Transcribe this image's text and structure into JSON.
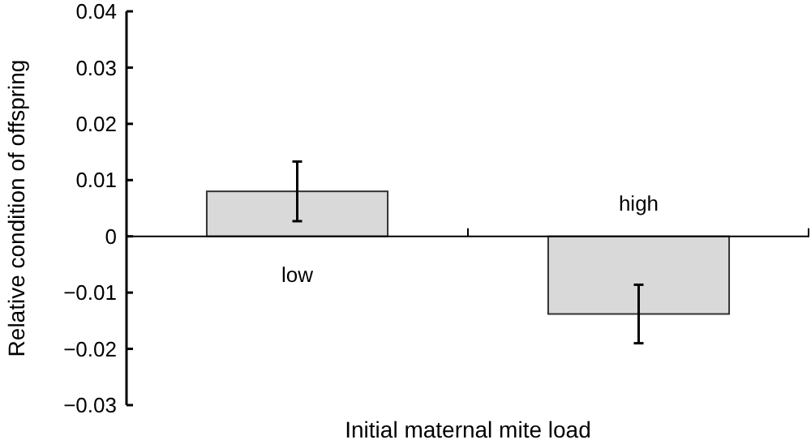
{
  "chart_data": {
    "type": "bar",
    "xlabel": "Initial maternal mite load",
    "ylabel": "Relative condition of offspring",
    "categories": [
      "low",
      "high"
    ],
    "values": [
      0.008,
      -0.0138
    ],
    "errors": [
      0.0053,
      0.0052
    ],
    "color": "#d9d9d9",
    "ylim": [
      -0.03,
      0.04
    ],
    "yticks": [
      {
        "value": -0.03,
        "label": "−0.03"
      },
      {
        "value": -0.02,
        "label": "−0.02"
      },
      {
        "value": -0.01,
        "label": "−0.01"
      },
      0,
      0.01,
      0.02,
      0.03,
      0.04
    ],
    "data_labels": false
  }
}
